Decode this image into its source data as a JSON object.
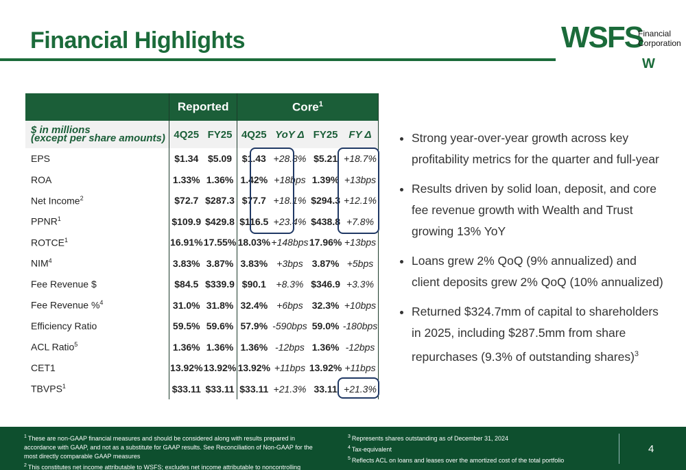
{
  "header": {
    "title": "Financial Highlights",
    "logo": {
      "name": "WSFS",
      "line1": "Financial",
      "line2": "Corporation",
      "mark": "W"
    }
  },
  "table": {
    "groups": [
      {
        "text": "Reported"
      },
      {
        "text": "Core",
        "sup": "1"
      }
    ],
    "columns": [
      "$ in millions",
      "(except per share amounts)"
    ],
    "headers": [
      "4Q25",
      "FY25",
      "4Q25",
      "YoY Δ",
      "FY25",
      "FY Δ"
    ],
    "rows": [
      {
        "label": "EPS",
        "values": [
          "$1.34",
          "$5.09",
          "$1.43",
          "+28.8%",
          "$5.21",
          "+18.7%"
        ]
      },
      {
        "label": "ROA",
        "values": [
          "1.33%",
          "1.36%",
          "1.42%",
          "+18bps",
          "1.39%",
          "+13bps"
        ]
      },
      {
        "label": "Net Income",
        "sup": "2",
        "values": [
          "$72.7",
          "$287.3",
          "$77.7",
          "+18.1%",
          "$294.3",
          "+12.1%"
        ]
      },
      {
        "label": "PPNR",
        "sup": "1",
        "values": [
          "$109.9",
          "$429.8",
          "$116.5",
          "+23.4%",
          "$438.8",
          "+7.8%"
        ]
      },
      {
        "label": "ROTCE",
        "sup": "1",
        "values": [
          "16.91%",
          "17.55%",
          "18.03%",
          "+148bps",
          "17.96%",
          "+13bps"
        ]
      },
      {
        "label": "NIM",
        "sup": "4",
        "values": [
          "3.83%",
          "3.87%",
          "3.83%",
          "+3bps",
          "3.87%",
          "+5bps"
        ]
      },
      {
        "label": "Fee Revenue $",
        "values": [
          "$84.5",
          "$339.9",
          "$90.1",
          "+8.3%",
          "$346.9",
          "+3.3%"
        ]
      },
      {
        "label": "Fee Revenue %",
        "sup": "4",
        "values": [
          "31.0%",
          "31.8%",
          "32.4%",
          "+6bps",
          "32.3%",
          "+10bps"
        ]
      },
      {
        "label": "Efficiency Ratio",
        "values": [
          "59.5%",
          "59.6%",
          "57.9%",
          "-590bps",
          "59.0%",
          "-180bps"
        ]
      },
      {
        "label": "ACL Ratio",
        "sup": "5",
        "values": [
          "1.36%",
          "1.36%",
          "1.36%",
          "-12bps",
          "1.36%",
          "-12bps"
        ]
      },
      {
        "label": "CET1",
        "values": [
          "13.92%",
          "13.92%",
          "13.92%",
          "+11bps",
          "13.92%",
          "+11bps"
        ]
      },
      {
        "label": "TBVPS",
        "sup": "1",
        "values": [
          "$33.11",
          "$33.11",
          "$33.11",
          "+21.3%",
          "33.11",
          "+21.3%"
        ]
      }
    ]
  },
  "bullets": [
    {
      "text": "Strong year-over-year growth across key profitability metrics for the quarter and full-year"
    },
    {
      "text": "Results driven by solid loan, deposit, and core fee revenue growth with Wealth and Trust growing 13% YoY"
    },
    {
      "text": "Loans grew 2% QoQ (9% annualized) and client deposits grew 2% QoQ (10% annualized)"
    },
    {
      "text": "Returned $324.7mm of capital to shareholders in 2025, including $287.5mm from share repurchases (9.3% of outstanding shares)",
      "sup": "3"
    }
  ],
  "footnotes": {
    "left": [
      {
        "marker": "1",
        "text": "These are non-GAAP financial measures and should be considered along with results prepared in accordance with GAAP, and not as a substitute for GAAP results. See Reconciliation of Non-GAAP for the most directly comparable GAAP measures"
      },
      {
        "marker": "2",
        "text": "This constitutes net income attributable to WSFS; excludes net income attributable to noncontrolling interest"
      }
    ],
    "right": [
      {
        "marker": "3",
        "text": "Represents shares outstanding as of December 31, 2024"
      },
      {
        "marker": "4",
        "text": "Tax-equivalent"
      },
      {
        "marker": "5",
        "text": "Reflects ACL on loans and leases over the amortized cost of the total portfolio"
      }
    ]
  },
  "page_number": "4"
}
